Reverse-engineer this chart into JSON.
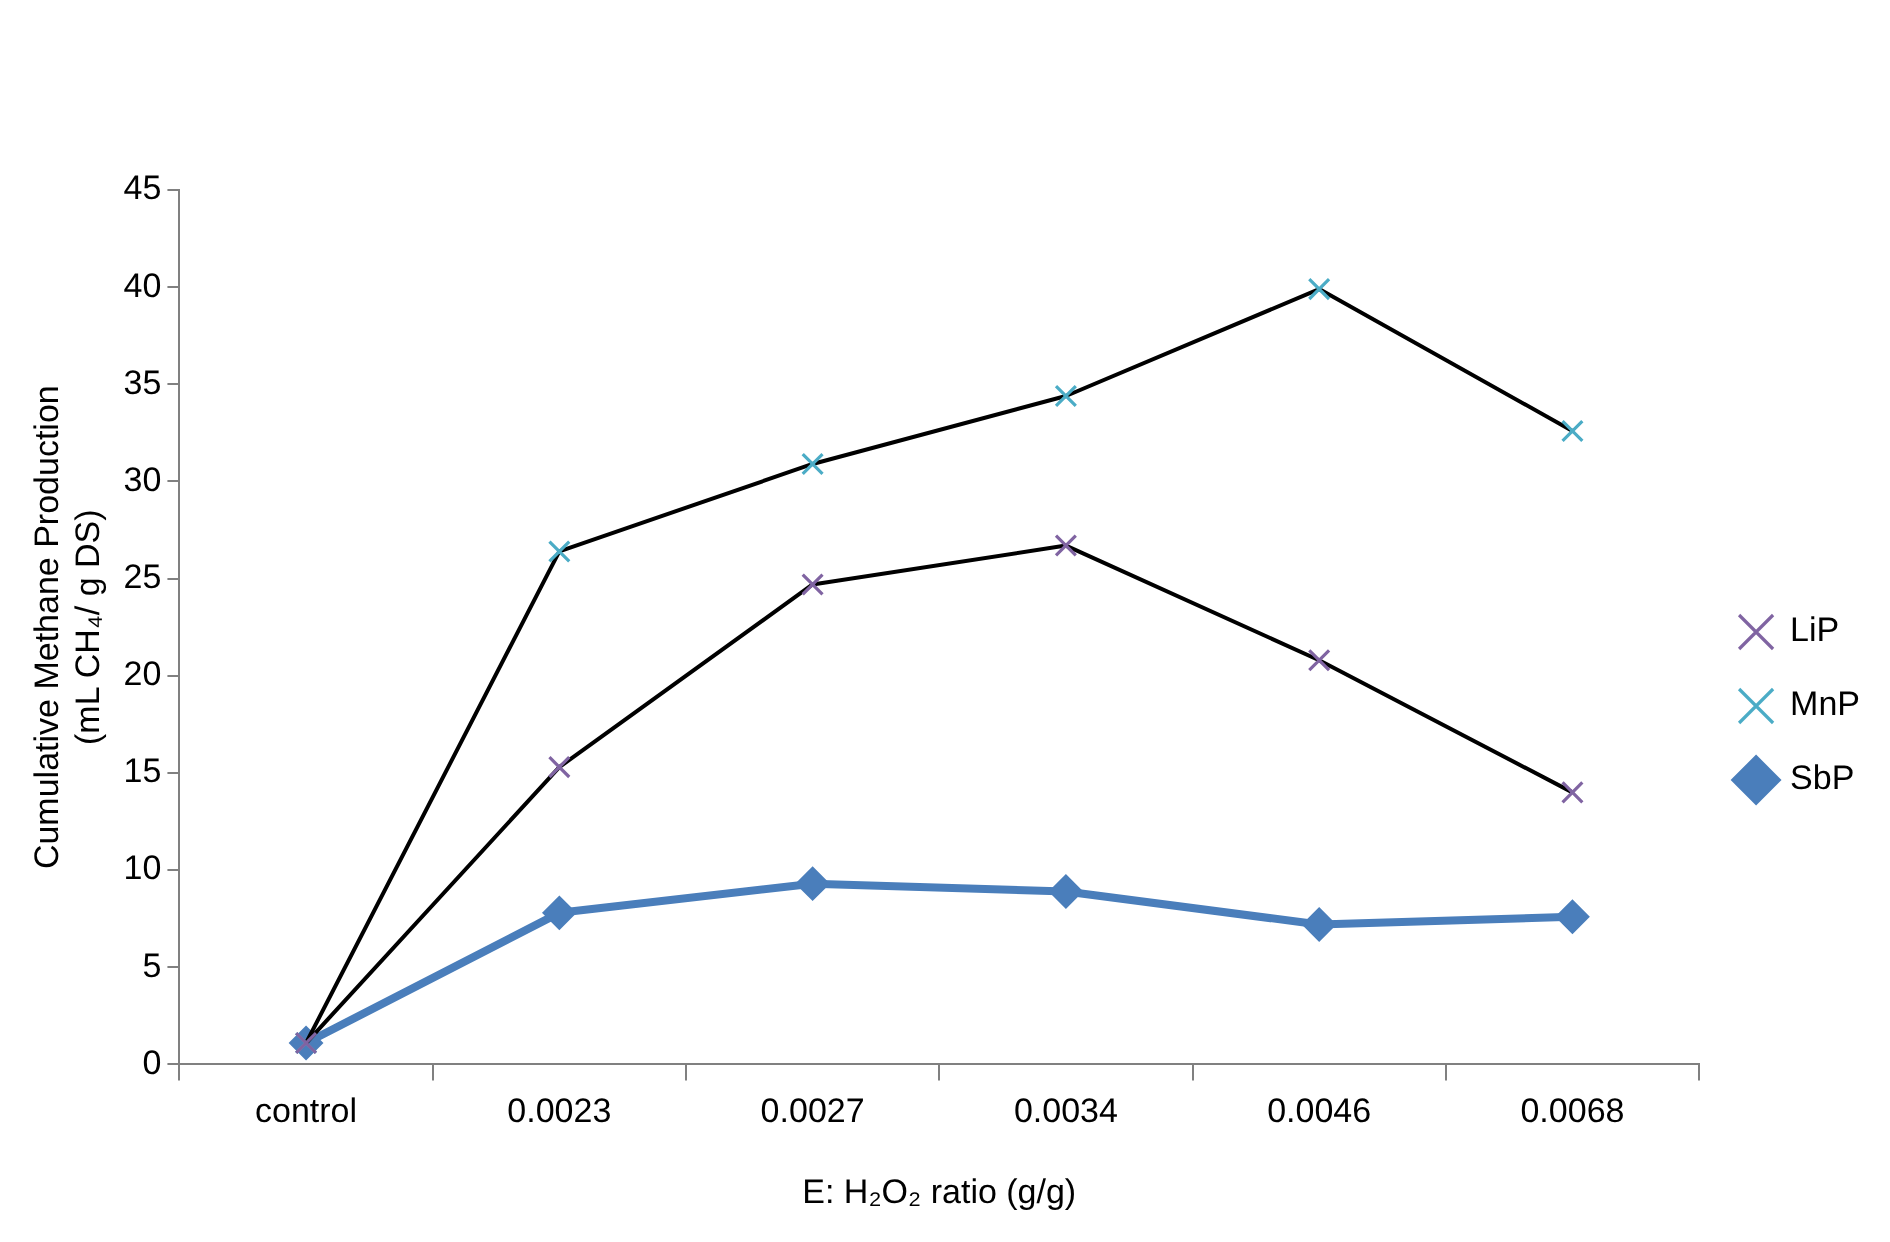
{
  "chart_data": {
    "type": "line",
    "xlabel": "E: H₂O₂ ratio (g/g)",
    "ylabel": "Cumulative Methane Production\n(mL CH₄/ g DS)",
    "categories": [
      "control",
      "0.0023",
      "0.0027",
      "0.0034",
      "0.0046",
      "0.0068"
    ],
    "series": [
      {
        "name": "LiP",
        "color": "#000000",
        "colors": [
          "#8064a2",
          "#8064a2",
          "#8064a2",
          "#8064a2",
          "#8064a2",
          "#8064a2"
        ],
        "marker": "cross",
        "values": [
          1.1,
          15.3,
          24.7,
          26.7,
          20.8,
          14.0
        ]
      },
      {
        "name": "MnP",
        "color": "#000000",
        "colors": [
          "#4bacc6",
          "#4bacc6",
          "#4bacc6",
          "#4bacc6",
          "#4bacc6",
          "#4bacc6"
        ],
        "marker": "cross",
        "values": [
          1.1,
          26.4,
          30.9,
          34.4,
          39.9,
          32.6
        ]
      },
      {
        "name": "SbP",
        "color": "#4a7ebb",
        "marker": "diamond",
        "values": [
          1.1,
          7.8,
          9.3,
          8.9,
          7.2,
          7.6
        ]
      }
    ],
    "ylim": [
      0,
      45
    ],
    "yticks": [
      0,
      5,
      10,
      15,
      20,
      25,
      30,
      35,
      40,
      45
    ],
    "grid": false,
    "legend": "right"
  }
}
